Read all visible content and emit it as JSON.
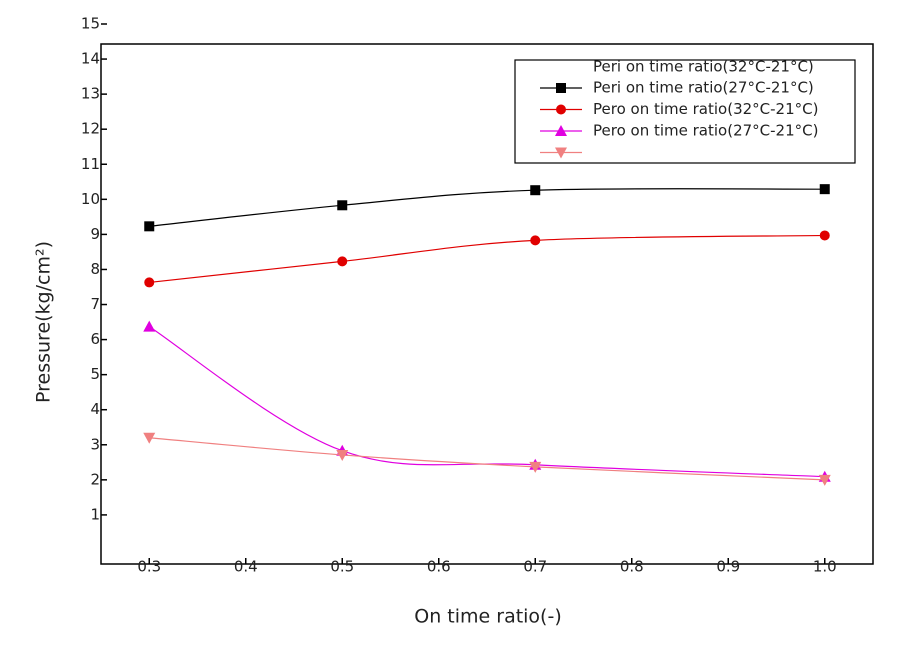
{
  "chart_data": {
    "type": "line",
    "x_label": "On time ratio(-)",
    "y_label": "Pressure(kg/cm²)",
    "legend_header": "Peri on time ratio(32°C-21°C)",
    "x": [
      0.3,
      0.5,
      0.7,
      1.0
    ],
    "xlim": [
      0.25,
      1.05
    ],
    "xticks": [
      0.3,
      0.4,
      0.5,
      0.6,
      0.7,
      0.8,
      0.9,
      {
        "value": 1,
        "label": "1.0"
      }
    ],
    "ylim": [
      -0.4,
      15
    ],
    "yticks": [
      1,
      2,
      3,
      4,
      5,
      6,
      7,
      8,
      9,
      10,
      11,
      12,
      13,
      14,
      15
    ],
    "series": [
      {
        "name": "Peri on time ratio(27°C-21°C)",
        "color": "#000000",
        "marker": "square",
        "values": [
          9.23,
          9.83,
          10.26,
          10.29
        ]
      },
      {
        "name": "Pero on time ratio(32°C-21°C)",
        "color": "#e00000",
        "marker": "circle",
        "values": [
          7.63,
          8.23,
          8.83,
          8.97
        ]
      },
      {
        "name": "Pero on time ratio(27°C-21°C)",
        "color": "#e000e0",
        "marker": "triangle",
        "values": [
          6.37,
          2.83,
          2.43,
          2.09
        ]
      },
      {
        "color": "#f08080",
        "marker": "triangle-down",
        "values": [
          3.2,
          2.71,
          2.37,
          2.0
        ]
      }
    ]
  }
}
